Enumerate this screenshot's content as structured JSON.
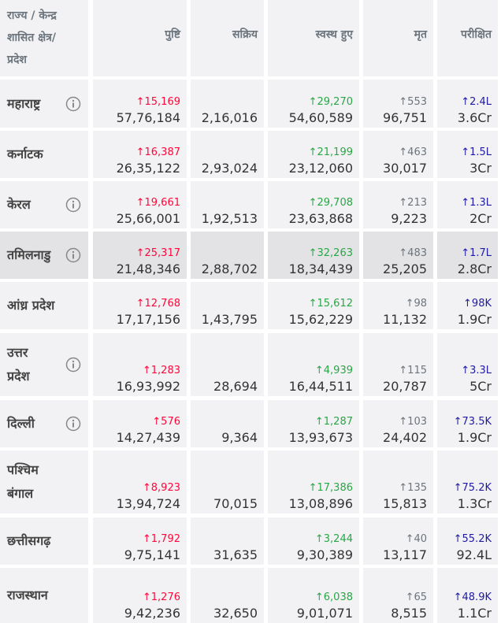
{
  "header": {
    "state": "राज्य / केन्द्र शासित क्षेत्र/ प्रदेश",
    "columns": [
      "पुष्टि",
      "सक्रिय",
      "स्वस्थ हुए",
      "मृत",
      "परीक्षित"
    ]
  },
  "rows": [
    {
      "state": "महाराष्ट्र",
      "info": true,
      "confirmed": {
        "delta": "↑15,169",
        "total": "57,76,184"
      },
      "active": "2,16,016",
      "recovered": {
        "delta": "↑29,270",
        "total": "54,60,589"
      },
      "deceased": {
        "delta": "↑553",
        "total": "96,751"
      },
      "tested": {
        "delta": "↑2.4L",
        "total": "3.6Cr"
      }
    },
    {
      "state": "कर्नाटक",
      "info": false,
      "confirmed": {
        "delta": "↑16,387",
        "total": "26,35,122"
      },
      "active": "2,93,024",
      "recovered": {
        "delta": "↑21,199",
        "total": "23,12,060"
      },
      "deceased": {
        "delta": "↑463",
        "total": "30,017"
      },
      "tested": {
        "delta": "↑1.5L",
        "total": "3Cr"
      }
    },
    {
      "state": "केरल",
      "info": true,
      "confirmed": {
        "delta": "↑19,661",
        "total": "25,66,001"
      },
      "active": "1,92,513",
      "recovered": {
        "delta": "↑29,708",
        "total": "23,63,868"
      },
      "deceased": {
        "delta": "↑213",
        "total": "9,223"
      },
      "tested": {
        "delta": "↑1.3L",
        "total": "2Cr"
      }
    },
    {
      "state": "तमिलनाडु",
      "info": true,
      "confirmed": {
        "delta": "↑25,317",
        "total": "21,48,346"
      },
      "active": "2,88,702",
      "recovered": {
        "delta": "↑32,263",
        "total": "18,34,439"
      },
      "deceased": {
        "delta": "↑483",
        "total": "25,205"
      },
      "tested": {
        "delta": "↑1.7L",
        "total": "2.8Cr"
      }
    },
    {
      "state": "आंध्र प्रदेश",
      "info": false,
      "confirmed": {
        "delta": "↑12,768",
        "total": "17,17,156"
      },
      "active": "1,43,795",
      "recovered": {
        "delta": "↑15,612",
        "total": "15,62,229"
      },
      "deceased": {
        "delta": "↑98",
        "total": "11,132"
      },
      "tested": {
        "delta": "↑98K",
        "total": "1.9Cr"
      }
    },
    {
      "state": "उत्तर प्रदेश",
      "info": true,
      "confirmed": {
        "delta": "↑1,283",
        "total": "16,93,992"
      },
      "active": "28,694",
      "recovered": {
        "delta": "↑4,939",
        "total": "16,44,511"
      },
      "deceased": {
        "delta": "↑115",
        "total": "20,787"
      },
      "tested": {
        "delta": "↑3.3L",
        "total": "5Cr"
      }
    },
    {
      "state": "दिल्ली",
      "info": true,
      "confirmed": {
        "delta": "↑576",
        "total": "14,27,439"
      },
      "active": "9,364",
      "recovered": {
        "delta": "↑1,287",
        "total": "13,93,673"
      },
      "deceased": {
        "delta": "↑103",
        "total": "24,402"
      },
      "tested": {
        "delta": "↑73.5K",
        "total": "1.9Cr"
      }
    },
    {
      "state": "पश्चिम बंगाल",
      "info": false,
      "confirmed": {
        "delta": "↑8,923",
        "total": "13,94,724"
      },
      "active": "70,015",
      "recovered": {
        "delta": "↑17,386",
        "total": "13,08,896"
      },
      "deceased": {
        "delta": "↑135",
        "total": "15,813"
      },
      "tested": {
        "delta": "↑75.2K",
        "total": "1.3Cr"
      }
    },
    {
      "state": "छत्तीसगढ़",
      "info": false,
      "confirmed": {
        "delta": "↑1,792",
        "total": "9,75,141"
      },
      "active": "31,635",
      "recovered": {
        "delta": "↑3,244",
        "total": "9,30,389"
      },
      "deceased": {
        "delta": "↑40",
        "total": "13,117"
      },
      "tested": {
        "delta": "↑55.2K",
        "total": "92.4L"
      }
    },
    {
      "state": "राजस्थान",
      "info": false,
      "confirmed": {
        "delta": "↑1,276",
        "total": "9,42,236"
      },
      "active": "32,650",
      "recovered": {
        "delta": "↑6,038",
        "total": "9,01,071"
      },
      "deceased": {
        "delta": "↑65",
        "total": "8,515"
      },
      "tested": {
        "delta": "↑48.9K",
        "total": "1.1Cr"
      }
    }
  ]
}
